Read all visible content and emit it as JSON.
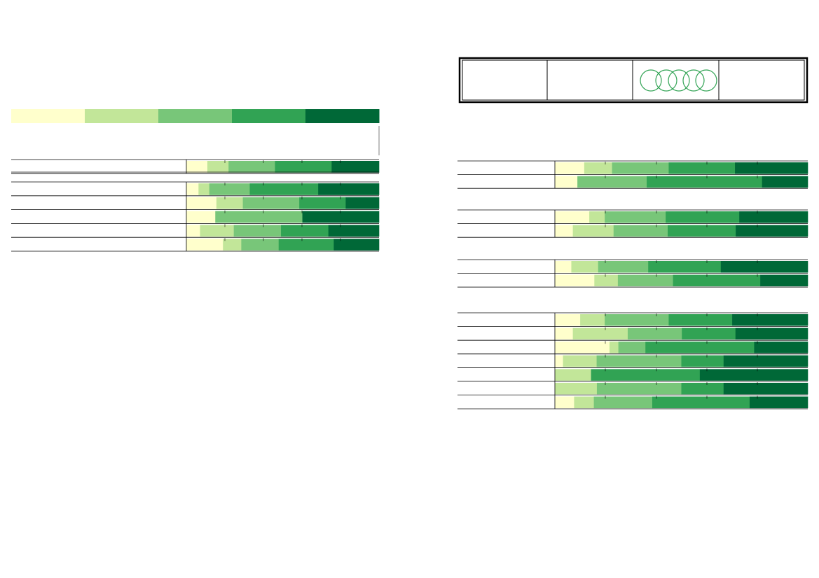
{
  "colors": {
    "scale": [
      "#ffffcc",
      "#c2e699",
      "#78c679",
      "#31a354",
      "#006837"
    ],
    "rings": "#31a354",
    "rule": "#000000"
  },
  "legend": {
    "swatches": 5
  },
  "header_box": {
    "cells": 4,
    "logo_cell": 3,
    "icon": "olympic-rings-icon"
  },
  "chart_data": [
    {
      "type": "bar",
      "stacked": true,
      "orientation": "horizontal",
      "scale": "percent",
      "xlim": [
        0,
        100
      ],
      "gridlines": [
        0,
        12.5,
        20,
        25,
        33.3,
        40,
        45,
        50,
        60,
        70,
        80,
        90,
        100
      ],
      "groups": [
        {
          "rows": [
            {
              "values": [
                10.9,
                11.0,
                24.1,
                29.4,
                24.6
              ]
            }
          ]
        },
        {
          "rows": [
            {
              "values": [
                6.3,
                5.6,
                21.0,
                35.5,
                31.6
              ]
            },
            {
              "values": [
                15.6,
                13.7,
                29.3,
                24.1,
                17.3
              ]
            },
            {
              "values": [
                15.0,
                0.0,
                45.2,
                0.0,
                39.8
              ]
            },
            {
              "values": [
                7.1,
                17.5,
                24.5,
                24.6,
                26.3
              ]
            },
            {
              "values": [
                19.0,
                9.5,
                19.4,
                28.6,
                23.5
              ]
            }
          ]
        }
      ]
    },
    {
      "type": "bar",
      "stacked": true,
      "orientation": "horizontal",
      "scale": "percent",
      "xlim": [
        0,
        100
      ],
      "groups": [
        {
          "rows": [
            {
              "values": [
                11.6,
                11.0,
                22.4,
                26.2,
                28.8
              ]
            },
            {
              "values": [
                8.9,
                0.0,
                27.4,
                45.6,
                18.1
              ]
            }
          ]
        },
        {
          "rows": [
            {
              "values": [
                13.6,
                6.1,
                24.1,
                29.1,
                27.1
              ]
            },
            {
              "values": [
                7.1,
                16.1,
                21.4,
                26.9,
                28.5
              ]
            }
          ]
        },
        {
          "rows": [
            {
              "values": [
                6.5,
                10.6,
                19.8,
                28.7,
                34.4
              ]
            },
            {
              "values": [
                15.6,
                9.3,
                21.8,
                34.5,
                18.8
              ]
            }
          ]
        },
        {
          "rows": [
            {
              "values": [
                10.0,
                9.7,
                25.3,
                25.1,
                29.9
              ]
            },
            {
              "values": [
                7.1,
                21.7,
                21.4,
                21.2,
                28.6
              ]
            },
            {
              "values": [
                21.6,
                3.5,
                10.7,
                43.0,
                21.2
              ]
            },
            {
              "values": [
                3.2,
                13.3,
                33.5,
                16.7,
                33.3
              ]
            },
            {
              "values": [
                0.0,
                14.3,
                0.0,
                43.0,
                42.7
              ]
            },
            {
              "values": [
                0.0,
                16.6,
                33.4,
                16.7,
                33.3
              ]
            },
            {
              "values": [
                7.6,
                7.8,
                23.1,
                38.5,
                23.0
              ]
            }
          ]
        }
      ]
    }
  ]
}
